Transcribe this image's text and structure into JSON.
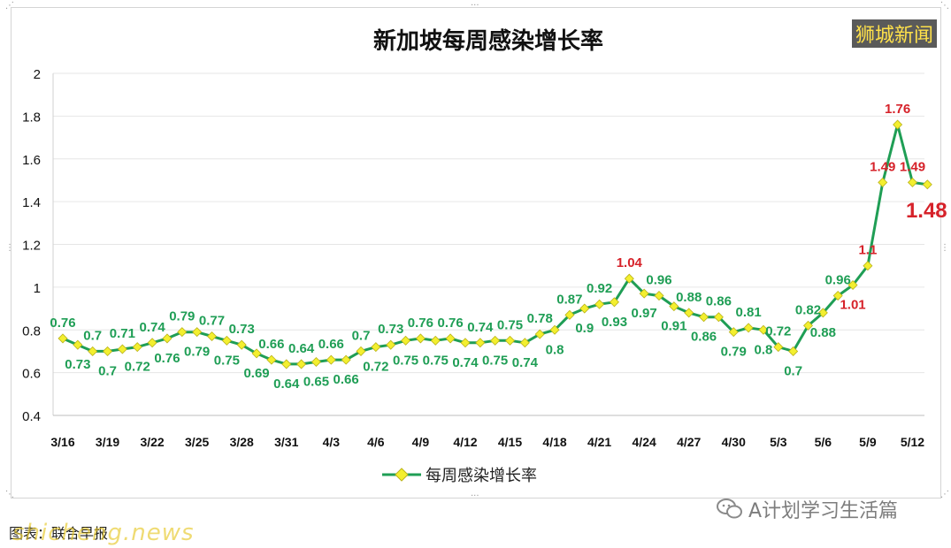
{
  "watermark": "狮城新闻",
  "footer": {
    "caption": "图表：联合早报",
    "site": "shicheng.news",
    "wechat_label": "A计划学习生活篇"
  },
  "colors": {
    "line": "#1f9e55",
    "marker": "#f3ef2f",
    "label_green": "#1f9e55",
    "label_red": "#d6222a"
  },
  "chart_data": {
    "type": "line",
    "title": "新加坡每周感染增长率",
    "ylim": [
      0.4,
      2
    ],
    "yticks": [
      "0.4",
      "0.6",
      "0.8",
      "1",
      "1.2",
      "1.4",
      "1.6",
      "1.8",
      "2"
    ],
    "xticks": [
      "3/16",
      "3/19",
      "3/22",
      "3/25",
      "3/28",
      "3/31",
      "4/3",
      "4/6",
      "4/9",
      "4/12",
      "4/15",
      "4/18",
      "4/21",
      "4/24",
      "4/27",
      "4/30",
      "5/3",
      "5/6",
      "5/9",
      "5/12"
    ],
    "grid": true,
    "legend": "bottom",
    "series": [
      {
        "name": "每周感染增长率",
        "values": [
          0.76,
          0.73,
          0.7,
          0.7,
          0.71,
          0.72,
          0.74,
          0.76,
          0.79,
          0.79,
          0.77,
          0.75,
          0.73,
          0.69,
          0.66,
          0.64,
          0.64,
          0.65,
          0.66,
          0.66,
          0.7,
          0.72,
          0.73,
          0.75,
          0.76,
          0.75,
          0.76,
          0.74,
          0.74,
          0.75,
          0.75,
          0.74,
          0.78,
          0.8,
          0.87,
          0.9,
          0.92,
          0.93,
          1.04,
          0.97,
          0.96,
          0.91,
          0.88,
          0.86,
          0.86,
          0.79,
          0.81,
          0.8,
          0.72,
          0.7,
          0.82,
          0.88,
          0.96,
          1.01,
          1.1,
          1.49,
          1.76,
          1.49,
          1.48
        ]
      }
    ],
    "data_labels": [
      {
        "i": 0,
        "text": "0.76",
        "pos": "above"
      },
      {
        "i": 1,
        "text": "0.73",
        "pos": "below"
      },
      {
        "i": 2,
        "text": "0.7",
        "pos": "above"
      },
      {
        "i": 3,
        "text": "0.7",
        "pos": "below"
      },
      {
        "i": 4,
        "text": "0.71",
        "pos": "above"
      },
      {
        "i": 5,
        "text": "0.72",
        "pos": "below"
      },
      {
        "i": 6,
        "text": "0.74",
        "pos": "above"
      },
      {
        "i": 7,
        "text": "0.76",
        "pos": "below"
      },
      {
        "i": 8,
        "text": "0.79",
        "pos": "above"
      },
      {
        "i": 9,
        "text": "0.79",
        "pos": "below"
      },
      {
        "i": 10,
        "text": "0.77",
        "pos": "above"
      },
      {
        "i": 11,
        "text": "0.75",
        "pos": "below"
      },
      {
        "i": 12,
        "text": "0.73",
        "pos": "above"
      },
      {
        "i": 13,
        "text": "0.69",
        "pos": "below"
      },
      {
        "i": 14,
        "text": "0.66",
        "pos": "above"
      },
      {
        "i": 15,
        "text": "0.64",
        "pos": "below"
      },
      {
        "i": 16,
        "text": "0.64",
        "pos": "above"
      },
      {
        "i": 17,
        "text": "0.65",
        "pos": "below"
      },
      {
        "i": 18,
        "text": "0.66",
        "pos": "above"
      },
      {
        "i": 19,
        "text": "0.66",
        "pos": "below"
      },
      {
        "i": 20,
        "text": "0.7",
        "pos": "above"
      },
      {
        "i": 21,
        "text": "0.72",
        "pos": "below"
      },
      {
        "i": 22,
        "text": "0.73",
        "pos": "above"
      },
      {
        "i": 23,
        "text": "0.75",
        "pos": "below"
      },
      {
        "i": 24,
        "text": "0.76",
        "pos": "above"
      },
      {
        "i": 25,
        "text": "0.75",
        "pos": "below"
      },
      {
        "i": 26,
        "text": "0.76",
        "pos": "above"
      },
      {
        "i": 27,
        "text": "0.74",
        "pos": "below"
      },
      {
        "i": 28,
        "text": "0.74",
        "pos": "above"
      },
      {
        "i": 29,
        "text": "0.75",
        "pos": "below"
      },
      {
        "i": 30,
        "text": "0.75",
        "pos": "above"
      },
      {
        "i": 31,
        "text": "0.74",
        "pos": "below"
      },
      {
        "i": 32,
        "text": "0.78",
        "pos": "above"
      },
      {
        "i": 33,
        "text": "0.8",
        "pos": "below"
      },
      {
        "i": 34,
        "text": "0.87",
        "pos": "above"
      },
      {
        "i": 35,
        "text": "0.9",
        "pos": "below"
      },
      {
        "i": 36,
        "text": "0.92",
        "pos": "above"
      },
      {
        "i": 37,
        "text": "0.93",
        "pos": "below"
      },
      {
        "i": 38,
        "text": "1.04",
        "pos": "above",
        "color": "red"
      },
      {
        "i": 39,
        "text": "0.97",
        "pos": "below"
      },
      {
        "i": 40,
        "text": "0.96",
        "pos": "above"
      },
      {
        "i": 41,
        "text": "0.91",
        "pos": "below"
      },
      {
        "i": 42,
        "text": "0.88",
        "pos": "above"
      },
      {
        "i": 43,
        "text": "0.86",
        "pos": "below"
      },
      {
        "i": 44,
        "text": "0.86",
        "pos": "above"
      },
      {
        "i": 45,
        "text": "0.79",
        "pos": "below"
      },
      {
        "i": 46,
        "text": "0.81",
        "pos": "above"
      },
      {
        "i": 47,
        "text": "0.8",
        "pos": "below"
      },
      {
        "i": 48,
        "text": "0.72",
        "pos": "above"
      },
      {
        "i": 49,
        "text": "0.7",
        "pos": "below"
      },
      {
        "i": 50,
        "text": "0.82",
        "pos": "above"
      },
      {
        "i": 51,
        "text": "0.88",
        "pos": "below"
      },
      {
        "i": 52,
        "text": "0.96",
        "pos": "above"
      },
      {
        "i": 53,
        "text": "1.01",
        "pos": "below",
        "color": "red"
      },
      {
        "i": 54,
        "text": "1.1",
        "pos": "above",
        "color": "red"
      },
      {
        "i": 55,
        "text": "1.49",
        "pos": "above",
        "color": "red"
      },
      {
        "i": 56,
        "text": "1.76",
        "pos": "above",
        "color": "red"
      },
      {
        "i": 57,
        "text": "1.49",
        "pos": "above",
        "color": "red"
      },
      {
        "i": 58,
        "text": "1.48",
        "pos": "below",
        "color": "red",
        "emphasis": true
      }
    ]
  }
}
